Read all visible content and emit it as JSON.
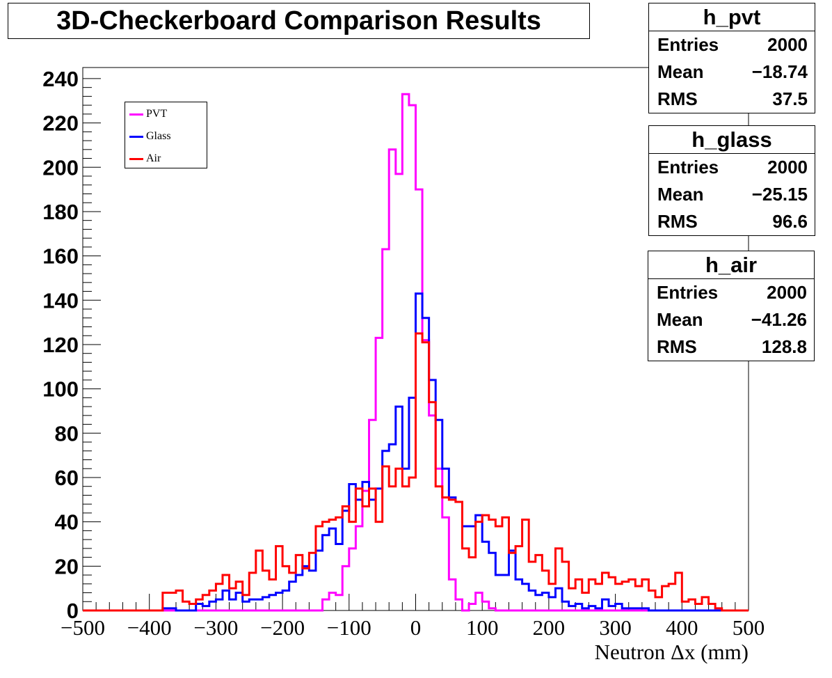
{
  "title": "3D-Checkerboard Comparison Results",
  "stats_boxes": [
    {
      "name": "h_pvt",
      "entries_label": "Entries",
      "entries": "2000",
      "mean_label": "Mean",
      "mean": "−18.74",
      "rms_label": "RMS",
      "rms": "37.5"
    },
    {
      "name": "h_glass",
      "entries_label": "Entries",
      "entries": "2000",
      "mean_label": "Mean",
      "mean": "−25.15",
      "rms_label": "RMS",
      "rms": "96.6"
    },
    {
      "name": "h_air",
      "entries_label": "Entries",
      "entries": "2000",
      "mean_label": "Mean",
      "mean": "−41.26",
      "rms_label": "RMS",
      "rms": "128.8"
    }
  ],
  "legend": {
    "entries": [
      {
        "label": "PVT",
        "color": "#ff00ff"
      },
      {
        "label": "Glass",
        "color": "#0000ff"
      },
      {
        "label": "Air",
        "color": "#ff0000"
      }
    ]
  },
  "chart_data": {
    "type": "histogram",
    "title": "3D-Checkerboard Comparison Results",
    "xlabel": "Neutron Δx (mm)",
    "ylabel": "",
    "xlim": [
      -500,
      500
    ],
    "ylim": [
      0,
      245
    ],
    "bin_width": 10,
    "x_tick_labels": [
      "−500",
      "−400",
      "−300",
      "−200",
      "−100",
      "0",
      "100",
      "200",
      "300",
      "400",
      "500"
    ],
    "y_tick_labels": [
      "0",
      "20",
      "40",
      "60",
      "80",
      "100",
      "120",
      "140",
      "160",
      "180",
      "200",
      "220",
      "240"
    ],
    "series": [
      {
        "name": "PVT",
        "color": "#ff00ff",
        "x_start": -500,
        "values": [
          0,
          0,
          0,
          0,
          0,
          0,
          0,
          0,
          0,
          0,
          0,
          0,
          0,
          0,
          0,
          0,
          0,
          0,
          0,
          0,
          0,
          0,
          0,
          0,
          0,
          0,
          0,
          0,
          0,
          0,
          0,
          0,
          0,
          0,
          0,
          0,
          5,
          8,
          7,
          20,
          28,
          38,
          54,
          86,
          123,
          163,
          208,
          197,
          233,
          228,
          190,
          122,
          88,
          64,
          42,
          14,
          5,
          0,
          3,
          8,
          4,
          1,
          0,
          0,
          0,
          0,
          0,
          0,
          0,
          0,
          0,
          0,
          0,
          0,
          0,
          0,
          0,
          0,
          0,
          0,
          0,
          0,
          0,
          0,
          0,
          0,
          0,
          0,
          0,
          0,
          0,
          0,
          0,
          0,
          0,
          0,
          0,
          0,
          0,
          0
        ]
      },
      {
        "name": "Glass",
        "color": "#0000ff",
        "x_start": -500,
        "values": [
          0,
          0,
          0,
          0,
          0,
          0,
          0,
          0,
          0,
          0,
          0,
          0,
          1,
          1,
          0,
          0,
          0,
          3,
          2,
          4,
          5,
          9,
          5,
          8,
          4,
          5,
          5,
          6,
          7,
          8,
          9,
          13,
          16,
          20,
          18,
          27,
          34,
          37,
          30,
          45,
          57,
          50,
          58,
          50,
          55,
          72,
          75,
          92,
          64,
          96,
          143,
          132,
          104,
          86,
          64,
          51,
          49,
          38,
          38,
          43,
          31,
          26,
          16,
          16,
          27,
          14,
          12,
          9,
          7,
          8,
          6,
          10,
          4,
          2,
          3,
          1,
          2,
          1,
          5,
          2,
          3,
          1,
          1,
          1,
          1,
          0,
          0,
          0,
          0,
          0,
          0,
          0,
          0,
          0,
          0,
          0,
          0,
          0,
          0,
          0
        ]
      },
      {
        "name": "Air",
        "color": "#ff0000",
        "x_start": -500,
        "values": [
          0,
          0,
          0,
          0,
          0,
          0,
          0,
          0,
          0,
          0,
          0,
          0,
          8,
          8,
          9,
          4,
          3,
          5,
          7,
          9,
          12,
          16,
          10,
          13,
          7,
          17,
          27,
          18,
          14,
          29,
          20,
          17,
          25,
          19,
          26,
          38,
          40,
          41,
          42,
          47,
          40,
          55,
          47,
          55,
          40,
          65,
          56,
          64,
          56,
          60,
          125,
          121,
          94,
          56,
          51,
          50,
          49,
          28,
          24,
          40,
          43,
          41,
          38,
          42,
          26,
          29,
          41,
          22,
          25,
          18,
          12,
          28,
          22,
          10,
          14,
          8,
          14,
          12,
          17,
          15,
          12,
          13,
          14,
          11,
          14,
          9,
          6,
          11,
          12,
          17,
          4,
          5,
          3,
          6,
          3,
          1,
          0,
          0,
          0,
          0
        ]
      }
    ]
  }
}
